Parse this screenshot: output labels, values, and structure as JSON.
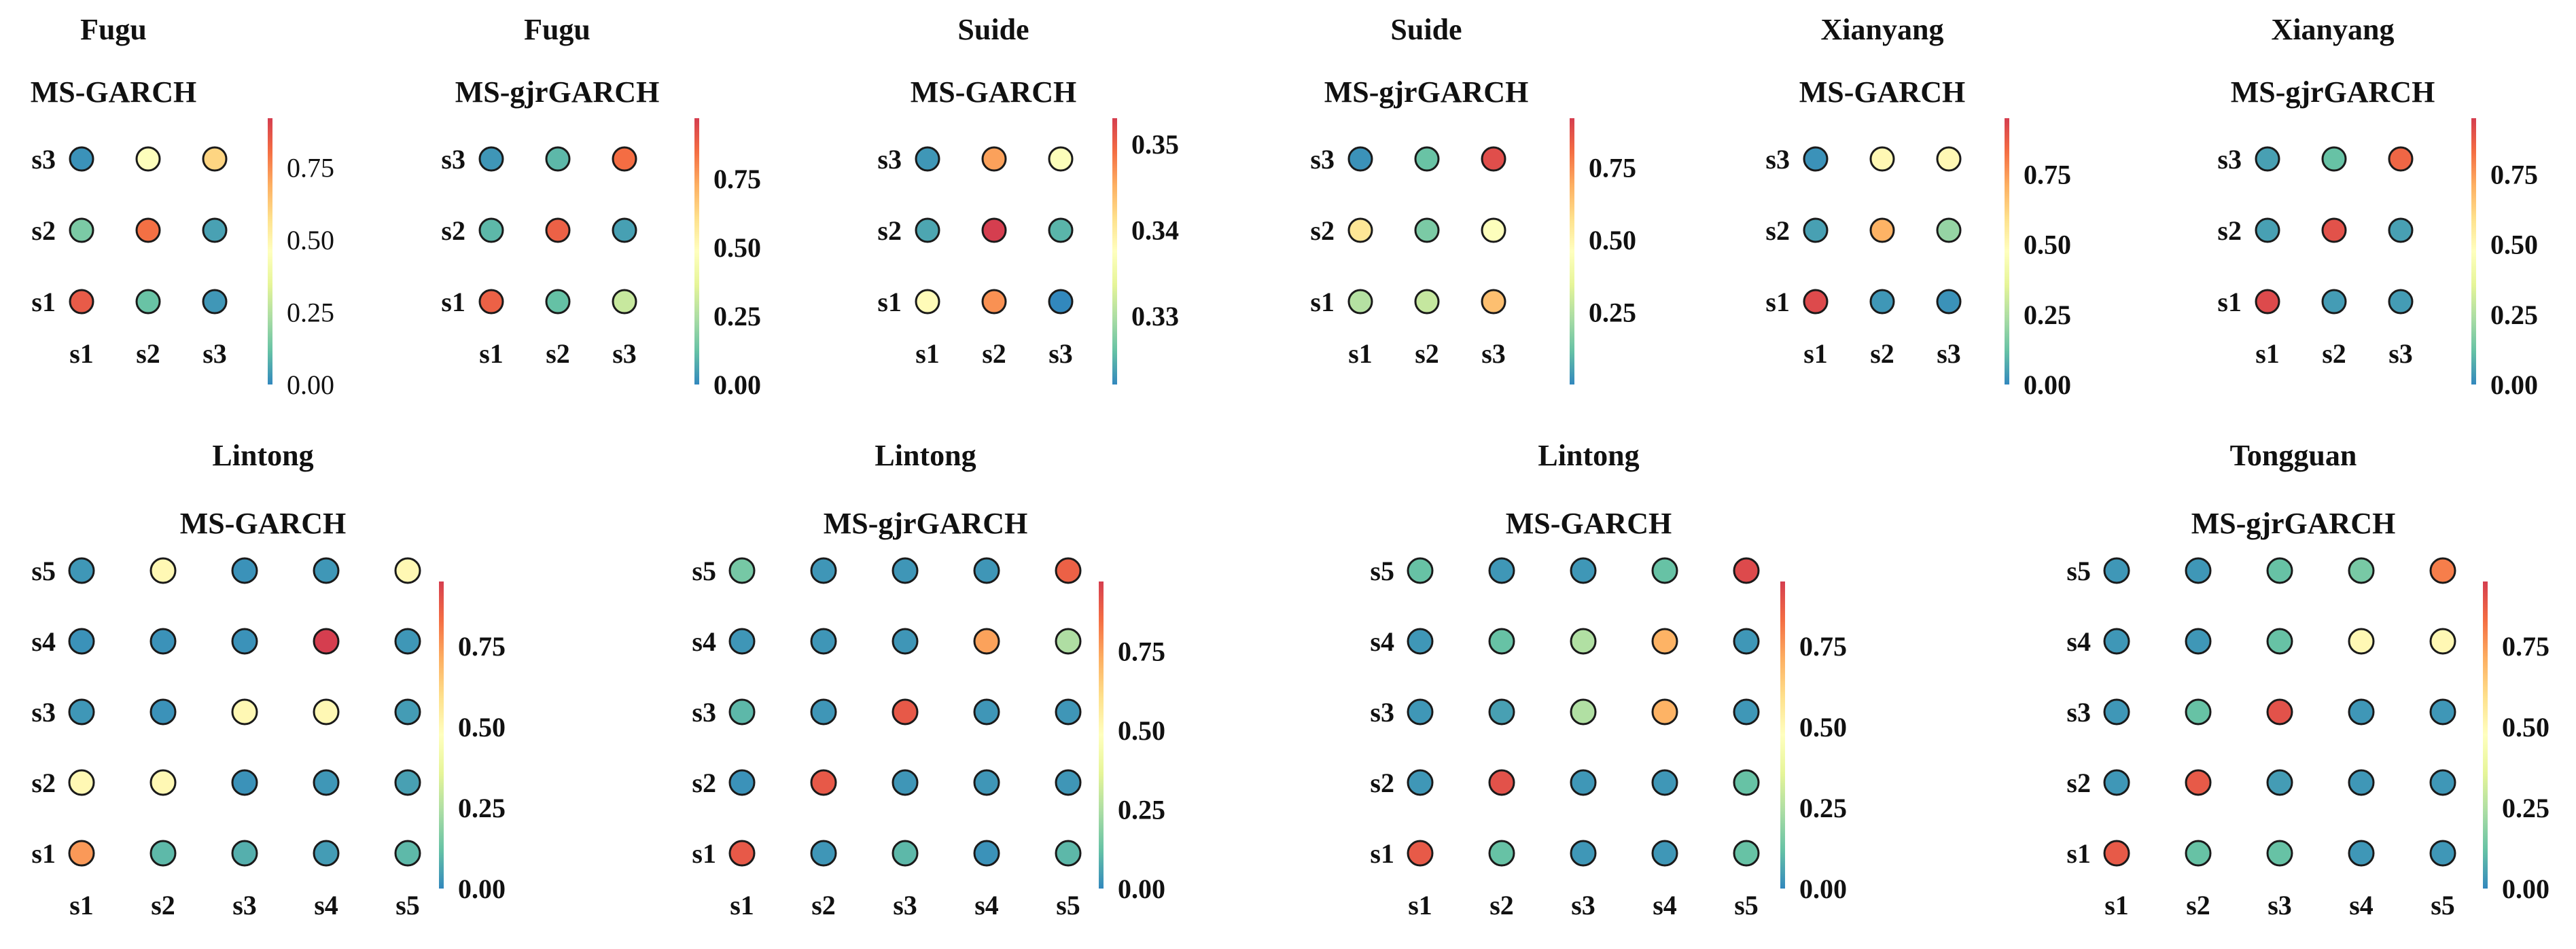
{
  "colorscale": [
    "#3288bd",
    "#66c2a5",
    "#abdda4",
    "#e6f598",
    "#ffffbf",
    "#fee08b",
    "#fdae61",
    "#f46d43",
    "#d53e4f"
  ],
  "chart_data": [
    {
      "type": "heatmap",
      "title": "Fugu",
      "subtitle": "MS-GARCH",
      "states": [
        "s1",
        "s2",
        "s3"
      ],
      "values": [
        [
          0.85,
          0.12,
          0.03
        ],
        [
          0.15,
          0.8,
          0.05
        ],
        [
          0.02,
          0.45,
          0.6
        ]
      ],
      "vmin": 0.0,
      "vmax": 0.92,
      "ticks": [
        "0.00",
        "0.25",
        "0.50",
        "0.75"
      ],
      "tick_values": [
        0.0,
        0.25,
        0.5,
        0.75
      ],
      "tick_bold": false
    },
    {
      "type": "heatmap",
      "title": "Fugu",
      "subtitle": "MS-gjrGARCH",
      "states": [
        "s1",
        "s2",
        "s3"
      ],
      "values": [
        [
          0.88,
          0.12,
          0.3
        ],
        [
          0.1,
          0.88,
          0.05
        ],
        [
          0.03,
          0.1,
          0.85
        ]
      ],
      "vmin": 0.0,
      "vmax": 0.97,
      "ticks": [
        "0.00",
        "0.25",
        "0.50",
        "0.75"
      ],
      "tick_values": [
        0.0,
        0.25,
        0.5,
        0.75
      ],
      "tick_bold": true
    },
    {
      "type": "heatmap",
      "title": "Suide",
      "subtitle": "MS-GARCH",
      "states": [
        "s1",
        "s2",
        "s3"
      ],
      "values": [
        [
          0.338,
          0.347,
          0.322
        ],
        [
          0.324,
          0.353,
          0.325
        ],
        [
          0.323,
          0.346,
          0.337
        ]
      ],
      "vmin": 0.322,
      "vmax": 0.353,
      "ticks": [
        "0.33",
        "0.34",
        "0.35"
      ],
      "tick_values": [
        0.33,
        0.34,
        0.35
      ],
      "tick_bold": true
    },
    {
      "type": "heatmap",
      "title": "Suide",
      "subtitle": "MS-gjrGARCH",
      "states": [
        "s1",
        "s2",
        "s3"
      ],
      "values": [
        [
          0.25,
          0.28,
          0.65
        ],
        [
          0.55,
          0.15,
          0.45
        ],
        [
          0.02,
          0.12,
          0.88
        ]
      ],
      "vmin": 0.0,
      "vmax": 0.92,
      "ticks": [
        "0.25",
        "0.50",
        "0.75"
      ],
      "tick_values": [
        0.25,
        0.5,
        0.75
      ],
      "tick_bold": true
    },
    {
      "type": "heatmap",
      "title": "Xianyang",
      "subtitle": "MS-GARCH",
      "states": [
        "s1",
        "s2",
        "s3"
      ],
      "values": [
        [
          0.92,
          0.03,
          0.02
        ],
        [
          0.05,
          0.7,
          0.2
        ],
        [
          0.02,
          0.5,
          0.5
        ]
      ],
      "vmin": 0.0,
      "vmax": 0.95,
      "ticks": [
        "0.00",
        "0.25",
        "0.50",
        "0.75"
      ],
      "tick_values": [
        0.0,
        0.25,
        0.5,
        0.75
      ],
      "tick_bold": true
    },
    {
      "type": "heatmap",
      "title": "Xianyang",
      "subtitle": "MS-gjrGARCH",
      "states": [
        "s1",
        "s2",
        "s3"
      ],
      "values": [
        [
          0.92,
          0.04,
          0.04
        ],
        [
          0.05,
          0.9,
          0.05
        ],
        [
          0.05,
          0.12,
          0.85
        ]
      ],
      "vmin": 0.0,
      "vmax": 0.95,
      "ticks": [
        "0.00",
        "0.25",
        "0.50",
        "0.75"
      ],
      "tick_values": [
        0.0,
        0.25,
        0.5,
        0.75
      ],
      "tick_bold": true
    },
    {
      "type": "heatmap",
      "title": "Lintong",
      "subtitle": "MS-GARCH",
      "states": [
        "s1",
        "s2",
        "s3",
        "s4",
        "s5"
      ],
      "values": [
        [
          0.75,
          0.1,
          0.08,
          0.04,
          0.1
        ],
        [
          0.5,
          0.5,
          0.02,
          0.03,
          0.05
        ],
        [
          0.03,
          0.02,
          0.5,
          0.5,
          0.04
        ],
        [
          0.02,
          0.02,
          0.02,
          0.95,
          0.03
        ],
        [
          0.03,
          0.5,
          0.02,
          0.03,
          0.5
        ]
      ],
      "vmin": 0.0,
      "vmax": 0.95,
      "ticks": [
        "0.00",
        "0.25",
        "0.50",
        "0.75"
      ],
      "tick_values": [
        0.0,
        0.25,
        0.5,
        0.75
      ],
      "tick_bold": true
    },
    {
      "type": "heatmap",
      "title": "Lintong",
      "subtitle": "MS-gjrGARCH",
      "states": [
        "s1",
        "s2",
        "s3",
        "s4",
        "s5"
      ],
      "values": [
        [
          0.9,
          0.03,
          0.1,
          0.02,
          0.1
        ],
        [
          0.02,
          0.9,
          0.03,
          0.03,
          0.03
        ],
        [
          0.1,
          0.03,
          0.9,
          0.03,
          0.03
        ],
        [
          0.03,
          0.03,
          0.03,
          0.75,
          0.25
        ],
        [
          0.15,
          0.03,
          0.03,
          0.03,
          0.88
        ]
      ],
      "vmin": 0.0,
      "vmax": 0.97,
      "ticks": [
        "0.00",
        "0.25",
        "0.50",
        "0.75"
      ],
      "tick_values": [
        0.0,
        0.25,
        0.5,
        0.75
      ],
      "tick_bold": true
    },
    {
      "type": "heatmap",
      "title": "Lintong",
      "subtitle": "MS-GARCH",
      "states": [
        "s1",
        "s2",
        "s3",
        "s4",
        "s5"
      ],
      "values": [
        [
          0.88,
          0.12,
          0.03,
          0.03,
          0.12
        ],
        [
          0.03,
          0.9,
          0.03,
          0.03,
          0.12
        ],
        [
          0.03,
          0.05,
          0.25,
          0.7,
          0.03
        ],
        [
          0.03,
          0.12,
          0.25,
          0.7,
          0.03
        ],
        [
          0.12,
          0.03,
          0.03,
          0.12,
          0.92
        ]
      ],
      "vmin": 0.0,
      "vmax": 0.95,
      "ticks": [
        "0.00",
        "0.25",
        "0.50",
        "0.75"
      ],
      "tick_values": [
        0.0,
        0.25,
        0.5,
        0.75
      ],
      "tick_bold": true
    },
    {
      "type": "heatmap",
      "title": "Tongguan",
      "subtitle": "MS-gjrGARCH",
      "states": [
        "s1",
        "s2",
        "s3",
        "s4",
        "s5"
      ],
      "values": [
        [
          0.88,
          0.12,
          0.12,
          0.03,
          0.03
        ],
        [
          0.03,
          0.88,
          0.04,
          0.03,
          0.03
        ],
        [
          0.03,
          0.12,
          0.9,
          0.03,
          0.03
        ],
        [
          0.03,
          0.03,
          0.12,
          0.5,
          0.5
        ],
        [
          0.03,
          0.03,
          0.12,
          0.15,
          0.8
        ]
      ],
      "vmin": 0.0,
      "vmax": 0.95,
      "ticks": [
        "0.00",
        "0.25",
        "0.50",
        "0.75"
      ],
      "tick_values": [
        0.0,
        0.25,
        0.5,
        0.75
      ],
      "tick_bold": true
    }
  ]
}
